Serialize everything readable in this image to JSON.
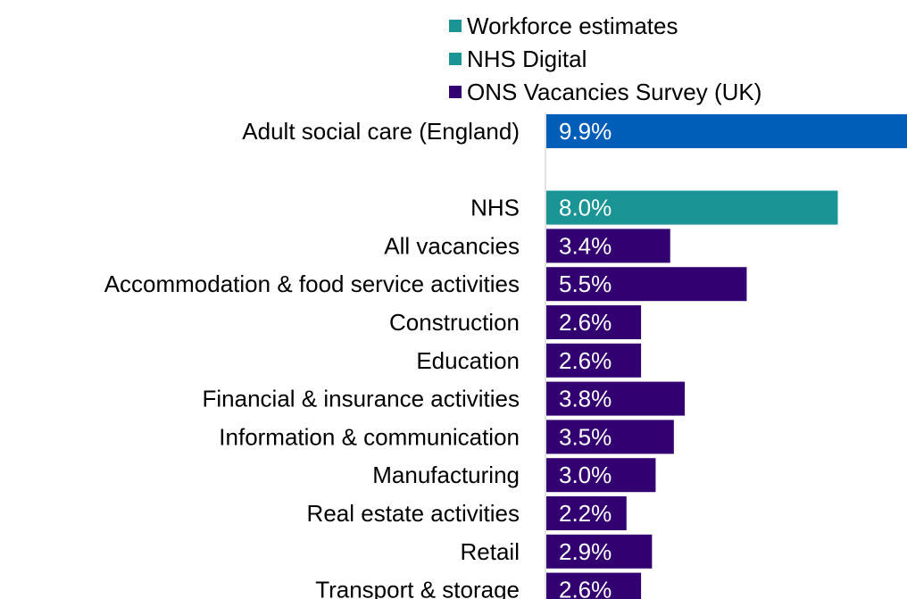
{
  "chart_data": {
    "type": "bar",
    "orientation": "horizontal",
    "categories": [
      "Adult social care (England)",
      "",
      "NHS",
      "All vacancies",
      "Accommodation & food service activities",
      "Construction",
      "Education",
      "Financial & insurance activities",
      "Information & communication",
      "Manufacturing",
      "Real estate activities",
      "Retail",
      "Transport & storage"
    ],
    "values": [
      9.9,
      null,
      8.0,
      3.4,
      5.5,
      2.6,
      2.6,
      3.8,
      3.5,
      3.0,
      2.2,
      2.9,
      2.6
    ],
    "value_labels": [
      "9.9%",
      "",
      "8.0%",
      "3.4%",
      "5.5%",
      "2.6%",
      "2.6%",
      "3.8%",
      "3.5%",
      "3.0%",
      "2.2%",
      "2.9%",
      "2.6%"
    ],
    "series_of_bar": [
      0,
      null,
      1,
      2,
      2,
      2,
      2,
      2,
      2,
      2,
      2,
      2,
      2
    ],
    "series": [
      {
        "name": "Workforce estimates",
        "color": "#1a9494"
      },
      {
        "name": "NHS Digital",
        "color": "#1a9494"
      },
      {
        "name": "ONS Vacancies Survey (UK)",
        "color": "#330072"
      }
    ],
    "bar_colors": [
      "#005EB8",
      null,
      "#1a9494",
      "#330072",
      "#330072",
      "#330072",
      "#330072",
      "#330072",
      "#330072",
      "#330072",
      "#330072",
      "#330072",
      "#330072"
    ],
    "xlim": [
      0,
      9.9
    ],
    "legend_position": "top",
    "grid": false
  }
}
